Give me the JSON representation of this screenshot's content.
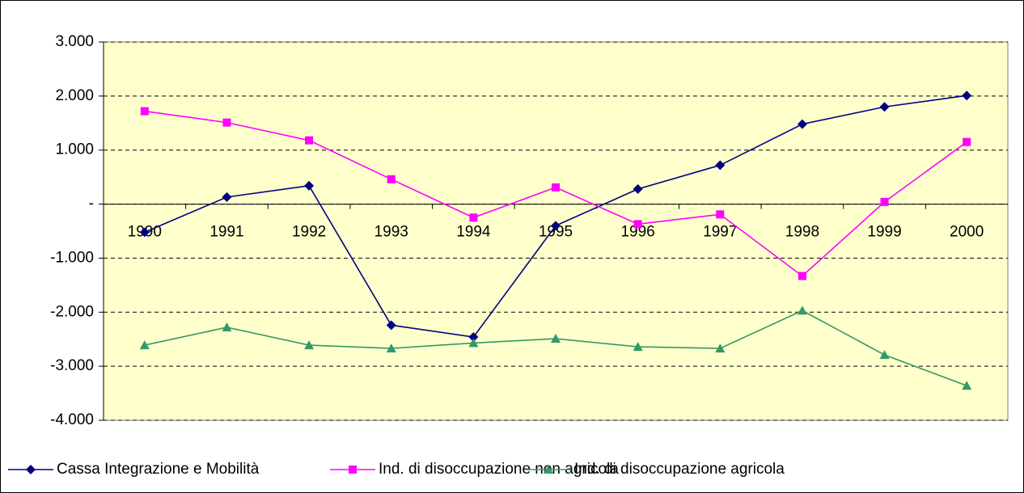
{
  "chart_data": {
    "type": "line",
    "categories": [
      "1990",
      "1991",
      "1992",
      "1993",
      "1994",
      "1995",
      "1996",
      "1997",
      "1998",
      "1999",
      "2000"
    ],
    "series": [
      {
        "name": "Cassa Integrazione e Mobilità",
        "color": "#000080",
        "marker": "diamond",
        "values": [
          -520,
          130,
          340,
          -2240,
          -2460,
          -400,
          280,
          720,
          1480,
          1800,
          2010
        ]
      },
      {
        "name": "Ind. di disoccupazione non agricola",
        "color": "#ff00ff",
        "marker": "square",
        "values": [
          1720,
          1510,
          1180,
          460,
          -250,
          310,
          -370,
          -190,
          -1330,
          40,
          1150
        ]
      },
      {
        "name": "Ind. di disoccupazione agricola",
        "color": "#339966",
        "marker": "triangle",
        "values": [
          -2610,
          -2280,
          -2610,
          -2670,
          -2570,
          -2490,
          -2640,
          -2670,
          -1970,
          -2790,
          -3360
        ]
      }
    ],
    "ylim": [
      -4000,
      3000
    ],
    "yticks": [
      {
        "value": 3000,
        "label": "3.000"
      },
      {
        "value": 2000,
        "label": "2.000"
      },
      {
        "value": 1000,
        "label": "1.000"
      },
      {
        "value": 0,
        "label": "-"
      },
      {
        "value": -1000,
        "label": "-1.000"
      },
      {
        "value": -2000,
        "label": "-2.000"
      },
      {
        "value": -3000,
        "label": "-3.000"
      },
      {
        "value": -4000,
        "label": "-4.000"
      }
    ],
    "grid": true,
    "legend": "bottom",
    "background": "#ffffcc"
  }
}
